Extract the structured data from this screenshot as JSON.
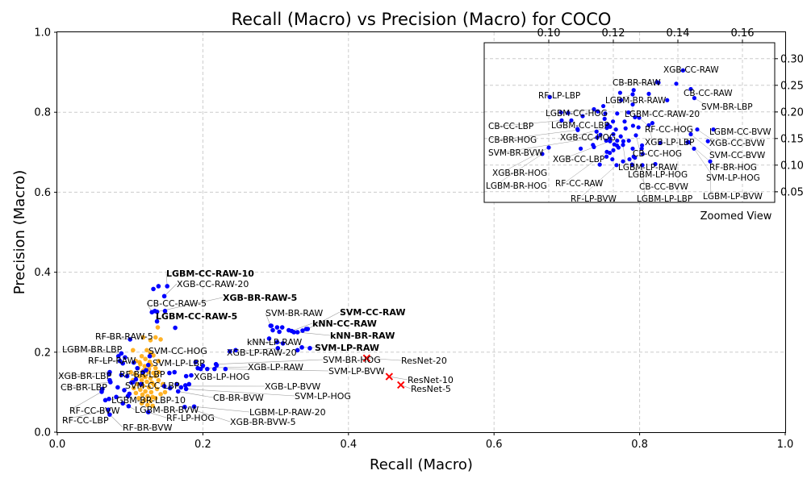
{
  "chart_data": [
    {
      "type": "scatter",
      "title": "Recall (Macro) vs Precision (Macro) for COCO",
      "xlabel": "Recall (Macro)",
      "ylabel": "Precision (Macro)",
      "xlim": [
        0,
        1.0
      ],
      "ylim": [
        0,
        1.0
      ],
      "xticks": [
        "0.0",
        "0.2",
        "0.4",
        "0.6",
        "0.8",
        "1.0"
      ],
      "yticks": [
        "0.0",
        "0.2",
        "0.4",
        "0.6",
        "0.8",
        "1.0"
      ],
      "grid": true,
      "colors": {
        "blue": "#0000ff",
        "orange": "#ffa500",
        "red": "#ff0000",
        "grid": "#cccccc",
        "leader": "#999999"
      },
      "labeled_points": [
        {
          "label": "LGBM-CC-RAW-10",
          "x": 0.151,
          "y": 0.365,
          "bold": true
        },
        {
          "label": "XGB-CC-RAW-20",
          "x": 0.147,
          "y": 0.34
        },
        {
          "label": "XGB-BR-RAW-5",
          "x": 0.137,
          "y": 0.301,
          "bold": true
        },
        {
          "label": "CB-CC-RAW-5",
          "x": 0.13,
          "y": 0.3
        },
        {
          "label": "LGBM-CC-RAW-5",
          "x": 0.137,
          "y": 0.277,
          "bold": true
        },
        {
          "label": "RF-BR-RAW-5",
          "x": 0.1,
          "y": 0.232
        },
        {
          "label": "LGBM-BR-LBP",
          "x": 0.088,
          "y": 0.197
        },
        {
          "label": "SVM-CC-HOG",
          "x": 0.127,
          "y": 0.19
        },
        {
          "label": "RF-LP-RAW",
          "x": 0.086,
          "y": 0.178
        },
        {
          "label": "SVM-LP-LBP",
          "x": 0.125,
          "y": 0.168
        },
        {
          "label": "RF-BR-LBP",
          "x": 0.122,
          "y": 0.155
        },
        {
          "label": "XGB-BR-LBP",
          "x": 0.072,
          "y": 0.15
        },
        {
          "label": "XGB-LP-HOG",
          "x": 0.177,
          "y": 0.14
        },
        {
          "label": "CB-BR-LBP",
          "x": 0.073,
          "y": 0.125
        },
        {
          "label": "SVM-CC-LBP",
          "x": 0.104,
          "y": 0.125
        },
        {
          "label": "RF-CC-BVW",
          "x": 0.061,
          "y": 0.101
        },
        {
          "label": "LGBM-BR-LBP-10",
          "x": 0.097,
          "y": 0.09
        },
        {
          "label": "LGBM-BR-BVW",
          "x": 0.09,
          "y": 0.072
        },
        {
          "label": "RF-CC-LBP",
          "x": 0.07,
          "y": 0.056
        },
        {
          "label": "RF-LP-HOG",
          "x": 0.125,
          "y": 0.05
        },
        {
          "label": "RF-BR-BVW",
          "x": 0.072,
          "y": 0.044
        },
        {
          "label": "SVM-CC-RAW",
          "x": 0.344,
          "y": 0.258,
          "bold": true
        },
        {
          "label": "SVM-BR-RAW",
          "x": 0.293,
          "y": 0.266
        },
        {
          "label": "kNN-CC-RAW",
          "x": 0.322,
          "y": 0.253,
          "bold": true
        },
        {
          "label": "kNN-BR-RAW",
          "x": 0.33,
          "y": 0.25,
          "bold": true
        },
        {
          "label": "kNN-LP-RAW",
          "x": 0.302,
          "y": 0.225
        },
        {
          "label": "SVM-LP-RAW",
          "x": 0.336,
          "y": 0.212,
          "bold": true
        },
        {
          "label": "XGB-LP-RAW-20",
          "x": 0.303,
          "y": 0.21
        },
        {
          "label": "SVM-BR-HOG",
          "x": 0.218,
          "y": 0.17
        },
        {
          "label": "XGB-LP-RAW",
          "x": 0.193,
          "y": 0.16
        },
        {
          "label": "SVM-LP-BVW",
          "x": 0.231,
          "y": 0.158
        },
        {
          "label": "XGB-LP-BVW",
          "x": 0.147,
          "y": 0.115
        },
        {
          "label": "CB-BR-BVW",
          "x": 0.166,
          "y": 0.102
        },
        {
          "label": "SVM-LP-HOG",
          "x": 0.177,
          "y": 0.108
        },
        {
          "label": "LGBM-LP-RAW-20",
          "x": 0.188,
          "y": 0.064
        },
        {
          "label": "XGB-BR-BVW-5",
          "x": 0.175,
          "y": 0.063
        },
        {
          "label": "ResNet-20",
          "x": 0.425,
          "y": 0.185,
          "marker": "x"
        },
        {
          "label": "ResNet-10",
          "x": 0.456,
          "y": 0.139,
          "marker": "x"
        },
        {
          "label": "ResNet-5",
          "x": 0.472,
          "y": 0.118,
          "marker": "x"
        }
      ],
      "blue_points": [
        [
          0.132,
          0.358
        ],
        [
          0.139,
          0.365
        ],
        [
          0.134,
          0.303
        ],
        [
          0.162,
          0.261
        ],
        [
          0.148,
          0.303
        ],
        [
          0.084,
          0.19
        ],
        [
          0.093,
          0.187
        ],
        [
          0.105,
          0.174
        ],
        [
          0.09,
          0.172
        ],
        [
          0.11,
          0.16
        ],
        [
          0.118,
          0.15
        ],
        [
          0.071,
          0.146
        ],
        [
          0.088,
          0.143
        ],
        [
          0.096,
          0.14
        ],
        [
          0.108,
          0.132
        ],
        [
          0.072,
          0.13
        ],
        [
          0.102,
          0.124
        ],
        [
          0.115,
          0.12
        ],
        [
          0.062,
          0.108
        ],
        [
          0.083,
          0.112
        ],
        [
          0.092,
          0.105
        ],
        [
          0.099,
          0.096
        ],
        [
          0.081,
          0.088
        ],
        [
          0.071,
          0.083
        ],
        [
          0.066,
          0.08
        ],
        [
          0.098,
          0.065
        ],
        [
          0.155,
          0.11
        ],
        [
          0.164,
          0.12
        ],
        [
          0.176,
          0.117
        ],
        [
          0.17,
          0.112
        ],
        [
          0.181,
          0.12
        ],
        [
          0.161,
          0.15
        ],
        [
          0.184,
          0.142
        ],
        [
          0.197,
          0.158
        ],
        [
          0.206,
          0.158
        ],
        [
          0.219,
          0.167
        ],
        [
          0.2,
          0.166
        ],
        [
          0.19,
          0.175
        ],
        [
          0.154,
          0.148
        ],
        [
          0.294,
          0.266
        ],
        [
          0.302,
          0.262
        ],
        [
          0.309,
          0.262
        ],
        [
          0.296,
          0.255
        ],
        [
          0.305,
          0.251
        ],
        [
          0.318,
          0.255
        ],
        [
          0.325,
          0.25
        ],
        [
          0.337,
          0.254
        ],
        [
          0.342,
          0.258
        ],
        [
          0.291,
          0.234
        ],
        [
          0.31,
          0.222
        ],
        [
          0.347,
          0.21
        ],
        [
          0.33,
          0.205
        ],
        [
          0.237,
          0.202
        ],
        [
          0.216,
          0.158
        ],
        [
          0.245,
          0.205
        ]
      ],
      "orange_points": [
        [
          0.118,
          0.237
        ],
        [
          0.128,
          0.23
        ],
        [
          0.135,
          0.237
        ],
        [
          0.142,
          0.232
        ],
        [
          0.138,
          0.262
        ],
        [
          0.104,
          0.205
        ],
        [
          0.123,
          0.205
        ],
        [
          0.128,
          0.198
        ],
        [
          0.116,
          0.19
        ],
        [
          0.132,
          0.192
        ],
        [
          0.108,
          0.178
        ],
        [
          0.121,
          0.183
        ],
        [
          0.127,
          0.176
        ],
        [
          0.139,
          0.178
        ],
        [
          0.114,
          0.17
        ],
        [
          0.12,
          0.165
        ],
        [
          0.129,
          0.168
        ],
        [
          0.135,
          0.16
        ],
        [
          0.111,
          0.16
        ],
        [
          0.118,
          0.154
        ],
        [
          0.125,
          0.15
        ],
        [
          0.132,
          0.148
        ],
        [
          0.139,
          0.15
        ],
        [
          0.107,
          0.145
        ],
        [
          0.113,
          0.14
        ],
        [
          0.121,
          0.138
        ],
        [
          0.128,
          0.135
        ],
        [
          0.135,
          0.14
        ],
        [
          0.116,
          0.13
        ],
        [
          0.123,
          0.126
        ],
        [
          0.13,
          0.124
        ],
        [
          0.139,
          0.13
        ],
        [
          0.11,
          0.12
        ],
        [
          0.118,
          0.116
        ],
        [
          0.126,
          0.112
        ],
        [
          0.133,
          0.118
        ],
        [
          0.105,
          0.11
        ],
        [
          0.114,
          0.106
        ],
        [
          0.121,
          0.102
        ],
        [
          0.129,
          0.1
        ],
        [
          0.137,
          0.108
        ],
        [
          0.108,
          0.098
        ],
        [
          0.117,
          0.094
        ],
        [
          0.124,
          0.09
        ],
        [
          0.131,
          0.088
        ],
        [
          0.112,
          0.085
        ],
        [
          0.12,
          0.08
        ],
        [
          0.128,
          0.078
        ],
        [
          0.135,
          0.085
        ],
        [
          0.142,
          0.095
        ],
        [
          0.116,
          0.072
        ],
        [
          0.124,
          0.068
        ],
        [
          0.131,
          0.066
        ],
        [
          0.119,
          0.14
        ],
        [
          0.126,
          0.158
        ],
        [
          0.113,
          0.175
        ],
        [
          0.101,
          0.15
        ],
        [
          0.145,
          0.12
        ],
        [
          0.148,
          0.1
        ],
        [
          0.104,
          0.13
        ]
      ]
    },
    {
      "type": "scatter",
      "title": "",
      "caption": "Zoomed View",
      "xlim": [
        0.08,
        0.17
      ],
      "ylim": [
        0.03,
        0.33
      ],
      "xticks": [
        "0.10",
        "0.12",
        "0.14",
        "0.16"
      ],
      "yticks": [
        "0.05",
        "0.10",
        "0.15",
        "0.20",
        "0.25",
        "0.30"
      ],
      "grid": true,
      "labeled_points": [
        {
          "label": "XGB-CC-RAW",
          "x": 0.1416,
          "y": 0.278
        },
        {
          "label": "CB-BR-RAW",
          "x": 0.134,
          "y": 0.255
        },
        {
          "label": "CB-CC-RAW",
          "x": 0.144,
          "y": 0.243
        },
        {
          "label": "LGBM-BR-RAW",
          "x": 0.126,
          "y": 0.233
        },
        {
          "label": "RF-LP-LBP",
          "x": 0.1003,
          "y": 0.228
        },
        {
          "label": "SVM-BR-LBP",
          "x": 0.1451,
          "y": 0.226
        },
        {
          "label": "LGBM-CC-HOG",
          "x": 0.114,
          "y": 0.205
        },
        {
          "label": "LGBM-CC-RAW-20",
          "x": 0.126,
          "y": 0.214
        },
        {
          "label": "CB-CC-LBP",
          "x": 0.104,
          "y": 0.184
        },
        {
          "label": "LGBM-CC-LBP",
          "x": 0.107,
          "y": 0.184
        },
        {
          "label": "RF-CC-HOG",
          "x": 0.128,
          "y": 0.189
        },
        {
          "label": "LGBM-CC-BVW",
          "x": 0.151,
          "y": 0.167
        },
        {
          "label": "XGB-CC-HOG",
          "x": 0.119,
          "y": 0.172
        },
        {
          "label": "CB-BR-HOG",
          "x": 0.109,
          "y": 0.166
        },
        {
          "label": "XGB-LP-LBP",
          "x": 0.131,
          "y": 0.175
        },
        {
          "label": "XGB-CC-BVW",
          "x": 0.146,
          "y": 0.167
        },
        {
          "label": "SVM-BR-BVW",
          "x": 0.115,
          "y": 0.152
        },
        {
          "label": "CB-CC-HOG",
          "x": 0.127,
          "y": 0.156
        },
        {
          "label": "SVM-CC-BVW",
          "x": 0.144,
          "y": 0.158
        },
        {
          "label": "XGB-CC-LBP",
          "x": 0.119,
          "y": 0.145
        },
        {
          "label": "RF-BR-HOG",
          "x": 0.143,
          "y": 0.143
        },
        {
          "label": "LGBM-LP-RAW",
          "x": 0.123,
          "y": 0.138
        },
        {
          "label": "XGB-BR-HOG",
          "x": 0.1,
          "y": 0.133
        },
        {
          "label": "LGBM-LP-HOG",
          "x": 0.126,
          "y": 0.131
        },
        {
          "label": "SVM-LP-HOG",
          "x": 0.145,
          "y": 0.131
        },
        {
          "label": "RF-CC-RAW",
          "x": 0.118,
          "y": 0.125
        },
        {
          "label": "LGBM-BR-HOG",
          "x": 0.098,
          "y": 0.121
        },
        {
          "label": "CB-CC-BVW",
          "x": 0.125,
          "y": 0.111
        },
        {
          "label": "RF-LP-BVW",
          "x": 0.121,
          "y": 0.1
        },
        {
          "label": "LGBM-LP-LBP",
          "x": 0.129,
          "y": 0.1
        },
        {
          "label": "LGBM-LP-BVW",
          "x": 0.15,
          "y": 0.107
        }
      ],
      "points": [
        [
          0.1416,
          0.278
        ],
        [
          0.1335,
          0.256
        ],
        [
          0.1395,
          0.253
        ],
        [
          0.1263,
          0.241
        ],
        [
          0.1221,
          0.236
        ],
        [
          0.131,
          0.234
        ],
        [
          0.1003,
          0.228
        ],
        [
          0.1224,
          0.222
        ],
        [
          0.1367,
          0.222
        ],
        [
          0.1169,
          0.211
        ],
        [
          0.1152,
          0.201
        ],
        [
          0.1038,
          0.199
        ],
        [
          0.106,
          0.198
        ],
        [
          0.1175,
          0.197
        ],
        [
          0.1212,
          0.197
        ],
        [
          0.1247,
          0.199
        ],
        [
          0.1173,
          0.187
        ],
        [
          0.1105,
          0.192
        ],
        [
          0.1267,
          0.19
        ],
        [
          0.1321,
          0.179
        ],
        [
          0.1235,
          0.182
        ],
        [
          0.1199,
          0.182
        ],
        [
          0.1183,
          0.176
        ],
        [
          0.1261,
          0.174
        ],
        [
          0.1278,
          0.171
        ],
        [
          0.1238,
          0.169
        ],
        [
          0.1208,
          0.167
        ],
        [
          0.118,
          0.17
        ],
        [
          0.1148,
          0.163
        ],
        [
          0.116,
          0.157
        ],
        [
          0.1089,
          0.168
        ],
        [
          0.12,
          0.158
        ],
        [
          0.1223,
          0.154
        ],
        [
          0.119,
          0.15
        ],
        [
          0.1212,
          0.146
        ],
        [
          0.1231,
          0.145
        ],
        [
          0.1248,
          0.146
        ],
        [
          0.1203,
          0.139
        ],
        [
          0.1216,
          0.133
        ],
        [
          0.12,
          0.128
        ],
        [
          0.1189,
          0.123
        ],
        [
          0.1179,
          0.116
        ],
        [
          0.1197,
          0.111
        ],
        [
          0.123,
          0.107
        ],
        [
          0.1263,
          0.116
        ],
        [
          0.1291,
          0.121
        ],
        [
          0.1288,
          0.131
        ],
        [
          0.1346,
          0.142
        ],
        [
          0.1493,
          0.145
        ],
        [
          0.1434,
          0.143
        ],
        [
          0.1158,
          0.101
        ],
        [
          0.1258,
          0.101
        ],
        [
          0.1099,
          0.131
        ],
        [
          0.114,
          0.134
        ],
        [
          0.133,
          0.102
        ],
        [
          0.1267,
          0.114
        ],
        [
          0.1211,
          0.137
        ],
        [
          0.1289,
          0.137
        ],
        [
          0.1178,
          0.146
        ],
        [
          0.1137,
          0.138
        ]
      ]
    }
  ]
}
